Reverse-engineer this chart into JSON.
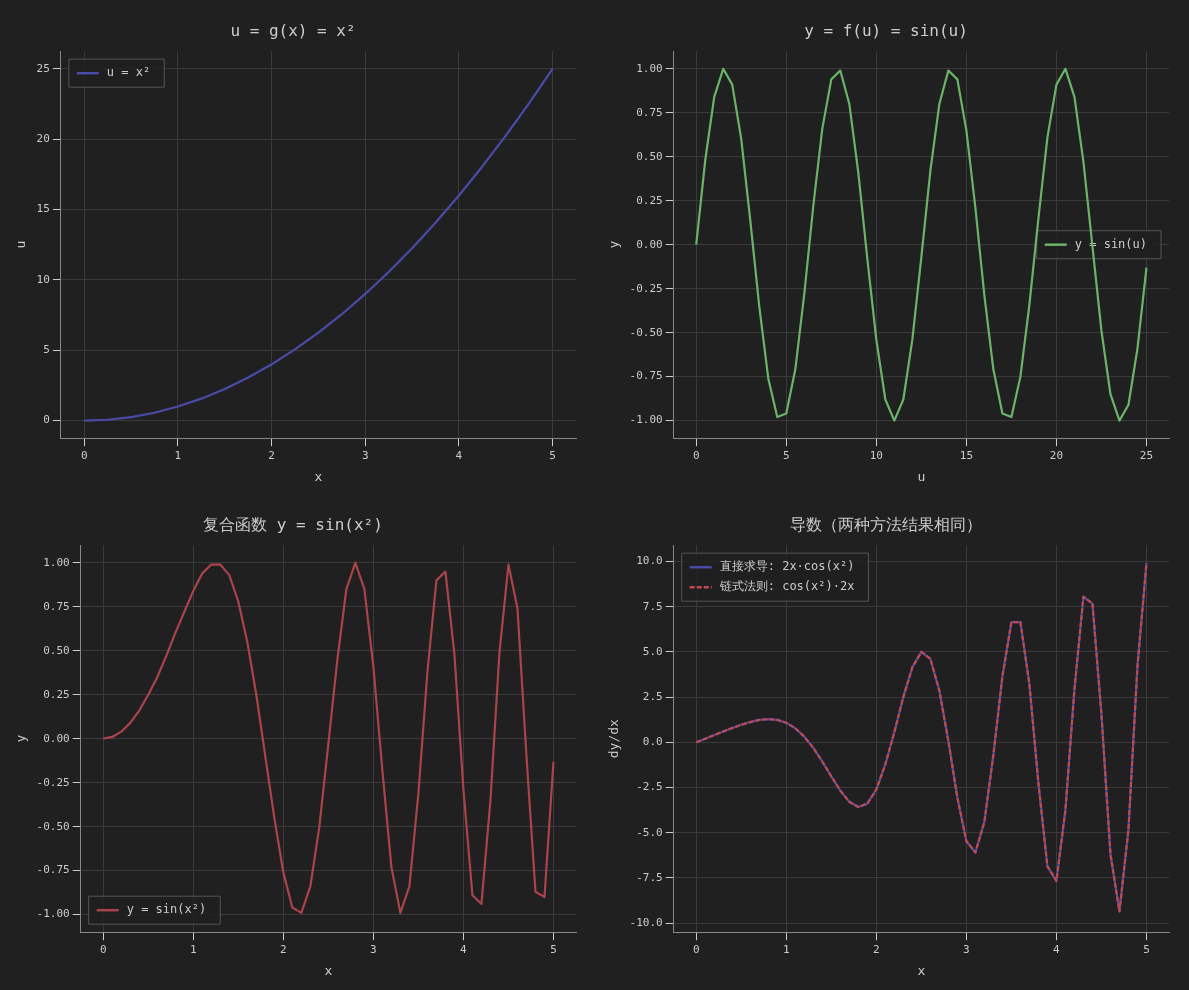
{
  "chart_data": [
    {
      "type": "line",
      "title": "u = g(x) = x²",
      "xlabel": "x",
      "ylabel": "u",
      "legend": "top left",
      "grid": true,
      "xlim": [
        -0.25,
        5.25
      ],
      "ylim": [
        -1.25,
        26.25
      ],
      "xticks": [
        0,
        1,
        2,
        3,
        4,
        5
      ],
      "yticks": [
        0,
        5,
        10,
        15,
        20,
        25
      ],
      "x": [
        0,
        0.25,
        0.5,
        0.75,
        1,
        1.25,
        1.5,
        1.75,
        2,
        2.25,
        2.5,
        2.75,
        3,
        3.25,
        3.5,
        3.75,
        4,
        4.25,
        4.5,
        4.75,
        5
      ],
      "series": [
        {
          "name": "u = x²",
          "color": "#4a4aa8",
          "line_style": "solid",
          "values": [
            0,
            0.06,
            0.25,
            0.56,
            1,
            1.56,
            2.25,
            3.06,
            4,
            5.06,
            6.25,
            7.56,
            9,
            10.56,
            12.25,
            14.06,
            16,
            18.06,
            20.25,
            22.56,
            25
          ]
        }
      ]
    },
    {
      "type": "line",
      "title": "y = f(u) = sin(u)",
      "xlabel": "u",
      "ylabel": "y",
      "legend": "right",
      "grid": true,
      "xlim": [
        -1.25,
        26.25
      ],
      "ylim": [
        -1.1,
        1.1
      ],
      "xticks": [
        0,
        5,
        10,
        15,
        20,
        25
      ],
      "yticks": [
        {
          "value": -1,
          "label": "-1.00"
        },
        {
          "value": -0.75,
          "label": "-0.75"
        },
        {
          "value": -0.5,
          "label": "-0.50"
        },
        {
          "value": -0.25,
          "label": "-0.25"
        },
        {
          "value": 0,
          "label": "0.00"
        },
        {
          "value": 0.25,
          "label": "0.25"
        },
        {
          "value": 0.5,
          "label": "0.50"
        },
        {
          "value": 0.75,
          "label": "0.75"
        },
        {
          "value": 1,
          "label": "1.00"
        }
      ],
      "x": [
        0,
        0.5,
        1,
        1.5,
        2,
        2.5,
        3,
        3.5,
        4,
        4.5,
        5,
        5.5,
        6,
        6.5,
        7,
        7.5,
        8,
        8.5,
        9,
        9.5,
        10,
        10.5,
        11,
        11.5,
        12,
        12.5,
        13,
        13.5,
        14,
        14.5,
        15,
        15.5,
        16,
        16.5,
        17,
        17.5,
        18,
        18.5,
        19,
        19.5,
        20,
        20.5,
        21,
        21.5,
        22,
        22.5,
        23,
        23.5,
        24,
        24.5,
        25
      ],
      "series": [
        {
          "name": "y = sin(u)",
          "color": "#6ab46a",
          "line_style": "solid",
          "values": [
            0,
            0.48,
            0.84,
            1,
            0.91,
            0.6,
            0.14,
            -0.35,
            -0.76,
            -0.98,
            -0.96,
            -0.71,
            -0.28,
            0.22,
            0.66,
            0.94,
            0.99,
            0.8,
            0.41,
            -0.08,
            -0.54,
            -0.88,
            -1,
            -0.88,
            -0.54,
            -0.07,
            0.42,
            0.8,
            0.99,
            0.94,
            0.65,
            0.21,
            -0.29,
            -0.71,
            -0.96,
            -0.98,
            -0.75,
            -0.34,
            0.15,
            0.61,
            0.91,
            1,
            0.84,
            0.47,
            -0.01,
            -0.49,
            -0.85,
            -1,
            -0.91,
            -0.59,
            -0.13
          ]
        }
      ]
    },
    {
      "type": "line",
      "title": "复合函数 y = sin(x²)",
      "xlabel": "x",
      "ylabel": "y",
      "legend": "bottom left",
      "grid": true,
      "xlim": [
        -0.25,
        5.25
      ],
      "ylim": [
        -1.1,
        1.1
      ],
      "xticks": [
        0,
        1,
        2,
        3,
        4,
        5
      ],
      "yticks": [
        {
          "value": -1,
          "label": "-1.00"
        },
        {
          "value": -0.75,
          "label": "-0.75"
        },
        {
          "value": -0.5,
          "label": "-0.50"
        },
        {
          "value": -0.25,
          "label": "-0.25"
        },
        {
          "value": 0,
          "label": "0.00"
        },
        {
          "value": 0.25,
          "label": "0.25"
        },
        {
          "value": 0.5,
          "label": "0.50"
        },
        {
          "value": 0.75,
          "label": "0.75"
        },
        {
          "value": 1,
          "label": "1.00"
        }
      ],
      "x": [
        0,
        0.1,
        0.2,
        0.3,
        0.4,
        0.5,
        0.6,
        0.7,
        0.8,
        0.9,
        1,
        1.1,
        1.2,
        1.3,
        1.4,
        1.5,
        1.6,
        1.7,
        1.8,
        1.9,
        2,
        2.1,
        2.2,
        2.3,
        2.4,
        2.5,
        2.6,
        2.7,
        2.8,
        2.9,
        3,
        3.1,
        3.2,
        3.3,
        3.4,
        3.5,
        3.6,
        3.7,
        3.8,
        3.9,
        4,
        4.1,
        4.2,
        4.3,
        4.4,
        4.5,
        4.6,
        4.7,
        4.8,
        4.9,
        5
      ],
      "series": [
        {
          "name": "y = sin(x²)",
          "color": "#a8444a",
          "line_style": "solid",
          "values": [
            0,
            0.01,
            0.04,
            0.09,
            0.16,
            0.25,
            0.35,
            0.47,
            0.6,
            0.72,
            0.84,
            0.94,
            0.99,
            0.99,
            0.93,
            0.78,
            0.55,
            0.25,
            -0.1,
            -0.45,
            -0.76,
            -0.96,
            -0.99,
            -0.84,
            -0.5,
            -0.03,
            0.45,
            0.85,
            1,
            0.85,
            0.41,
            -0.18,
            -0.73,
            -0.99,
            -0.84,
            -0.31,
            0.38,
            0.9,
            0.95,
            0.48,
            -0.29,
            -0.89,
            -0.94,
            -0.35,
            0.49,
            0.99,
            0.74,
            -0.1,
            -0.87,
            -0.9,
            -0.13
          ]
        }
      ]
    },
    {
      "type": "line",
      "title": "导数（两种方法结果相同）",
      "xlabel": "x",
      "ylabel": "dy/dx",
      "legend": "top left",
      "grid": true,
      "xlim": [
        -0.25,
        5.25
      ],
      "ylim": [
        -10.5,
        10.9
      ],
      "xticks": [
        0,
        1,
        2,
        3,
        4,
        5
      ],
      "yticks": [
        {
          "value": -10,
          "label": "-10.0"
        },
        {
          "value": -7.5,
          "label": "-7.5"
        },
        {
          "value": -5,
          "label": "-5.0"
        },
        {
          "value": -2.5,
          "label": "-2.5"
        },
        {
          "value": 0,
          "label": "0.0"
        },
        {
          "value": 2.5,
          "label": "2.5"
        },
        {
          "value": 5,
          "label": "5.0"
        },
        {
          "value": 7.5,
          "label": "7.5"
        },
        {
          "value": 10,
          "label": "10.0"
        }
      ],
      "x": [
        0,
        0.1,
        0.2,
        0.3,
        0.4,
        0.5,
        0.6,
        0.7,
        0.8,
        0.9,
        1,
        1.1,
        1.2,
        1.3,
        1.4,
        1.5,
        1.6,
        1.7,
        1.8,
        1.9,
        2,
        2.1,
        2.2,
        2.3,
        2.4,
        2.5,
        2.6,
        2.7,
        2.8,
        2.9,
        3,
        3.1,
        3.2,
        3.3,
        3.4,
        3.5,
        3.6,
        3.7,
        3.8,
        3.9,
        4,
        4.1,
        4.2,
        4.3,
        4.4,
        4.5,
        4.6,
        4.7,
        4.8,
        4.9,
        5
      ],
      "series": [
        {
          "name": "直接求导: 2x·cos(x²)",
          "color": "#4a4aa8",
          "line_style": "solid",
          "values": [
            0,
            0.2,
            0.4,
            0.6,
            0.79,
            0.97,
            1.12,
            1.24,
            1.28,
            1.24,
            1.08,
            0.78,
            0.31,
            -0.31,
            -1.06,
            -1.88,
            -2.67,
            -3.29,
            -3.58,
            -3.39,
            -2.61,
            -1.22,
            0.56,
            2.51,
            4.15,
            5,
            4.62,
            2.86,
            0.07,
            -3.06,
            -5.47,
            -6.09,
            -4.39,
            -0.69,
            3.64,
            6.65,
            6.65,
            3.2,
            -2.27,
            -6.86,
            -7.66,
            -3.73,
            2.94,
            8.05,
            7.67,
            1.53,
            -6.19,
            -9.35,
            -4.81,
            4.23,
            9.91
          ]
        },
        {
          "name": "链式法则: cos(x²)·2x",
          "color": "#c04a50",
          "line_style": "dashed",
          "values": [
            0,
            0.2,
            0.4,
            0.6,
            0.79,
            0.97,
            1.12,
            1.24,
            1.28,
            1.24,
            1.08,
            0.78,
            0.31,
            -0.31,
            -1.06,
            -1.88,
            -2.67,
            -3.29,
            -3.58,
            -3.39,
            -2.61,
            -1.22,
            0.56,
            2.51,
            4.15,
            5,
            4.62,
            2.86,
            0.07,
            -3.06,
            -5.47,
            -6.09,
            -4.39,
            -0.69,
            3.64,
            6.65,
            6.65,
            3.2,
            -2.27,
            -6.86,
            -7.66,
            -3.73,
            2.94,
            8.05,
            7.67,
            1.53,
            -6.19,
            -9.35,
            -4.81,
            4.23,
            9.91
          ]
        }
      ]
    }
  ]
}
